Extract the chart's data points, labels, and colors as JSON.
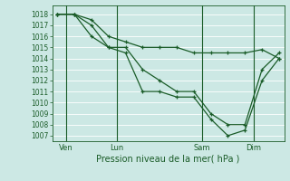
{
  "xlabel": "Pression niveau de la mer( hPa )",
  "bg_color": "#cce8e4",
  "line_color": "#1a5c28",
  "grid_color": "#b8d8d4",
  "yticks": [
    1007,
    1008,
    1009,
    1010,
    1011,
    1012,
    1013,
    1014,
    1015,
    1016,
    1017,
    1018
  ],
  "ylim": [
    1006.5,
    1018.8
  ],
  "xlim": [
    -0.3,
    13.3
  ],
  "xtick_labels": [
    "Ven",
    "Lun",
    "Sam",
    "Dim"
  ],
  "xtick_positions": [
    0.5,
    3.5,
    8.5,
    11.5
  ],
  "vline_positions": [
    0.5,
    3.5,
    8.5,
    11.5
  ],
  "series1_x": [
    0,
    1,
    2,
    3,
    4,
    5,
    6,
    7,
    8,
    9,
    10,
    11,
    12,
    13
  ],
  "series1_y": [
    1018,
    1018,
    1017.5,
    1016,
    1015.5,
    1015,
    1015,
    1015,
    1014.5,
    1014.5,
    1014.5,
    1014.5,
    1014.8,
    1014
  ],
  "series2_x": [
    0,
    1,
    2,
    3,
    4,
    5,
    6,
    7,
    8,
    9,
    10,
    11,
    12,
    13
  ],
  "series2_y": [
    1018,
    1018,
    1017,
    1015,
    1015,
    1013,
    1012,
    1011,
    1011,
    1009,
    1008,
    1008,
    1013,
    1014.5
  ],
  "series3_x": [
    0,
    1,
    2,
    3,
    4,
    5,
    6,
    7,
    8,
    9,
    10,
    11,
    12,
    13
  ],
  "series3_y": [
    1018,
    1018,
    1016,
    1015,
    1014.5,
    1011,
    1011,
    1010.5,
    1010.5,
    1008.5,
    1007,
    1007.5,
    1012,
    1014
  ]
}
